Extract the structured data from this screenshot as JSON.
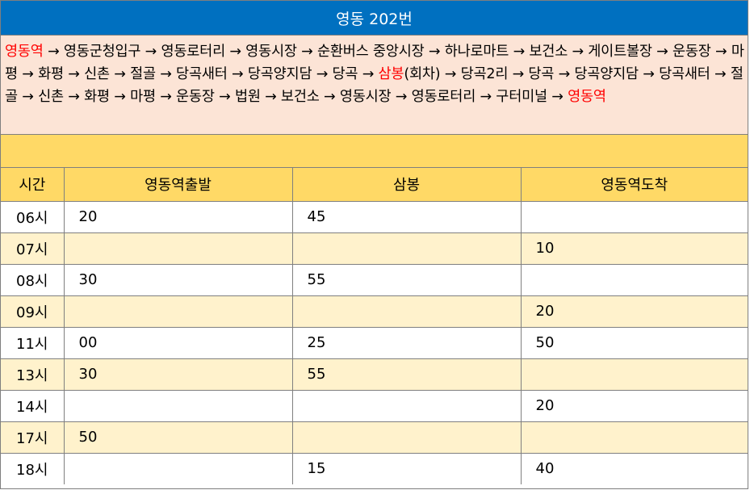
{
  "title": "영동 202번",
  "route": [
    {
      "text": "영동역",
      "highlight": true
    },
    {
      "text": " → 영동군청입구 → 영동로터리 → 영동시장 → 순환버스 중앙시장 → 하나로마트 → 보건소 → 게이트볼장 → 운동장 → 마평 → 화평 → 신촌 → 절골 → 당곡새터 → 당곡양지담 → 당곡 → ",
      "highlight": false
    },
    {
      "text": "삼봉",
      "highlight": true
    },
    {
      "text": "(회차) → 당곡2리 → 당곡 → 당곡양지담 → 당곡새터 → 절골 → 신촌 → 화평 → 마평 → 운동장 → 법원 → 보건소 → 영동시장 → 영동로터리 → 구터미널 → ",
      "highlight": false
    },
    {
      "text": "영동역",
      "highlight": true
    }
  ],
  "colors": {
    "header_blue": "#0070c0",
    "route_bg": "#fce4d6",
    "header_yellow": "#ffd966",
    "row_alt": "#fff2cc",
    "highlight_red": "#ff0000"
  },
  "table": {
    "headers": [
      "시간",
      "영동역출발",
      "삼봉",
      "영동역도착"
    ],
    "rows": [
      [
        "06시",
        "20",
        "45",
        ""
      ],
      [
        "07시",
        "",
        "",
        "10"
      ],
      [
        "08시",
        "30",
        "55",
        ""
      ],
      [
        "09시",
        "",
        "",
        "20"
      ],
      [
        "11시",
        "00",
        "25",
        "50"
      ],
      [
        "13시",
        "30",
        "55",
        ""
      ],
      [
        "14시",
        "",
        "",
        "20"
      ],
      [
        "17시",
        "50",
        "",
        ""
      ],
      [
        "18시",
        "",
        "15",
        "40"
      ]
    ]
  }
}
